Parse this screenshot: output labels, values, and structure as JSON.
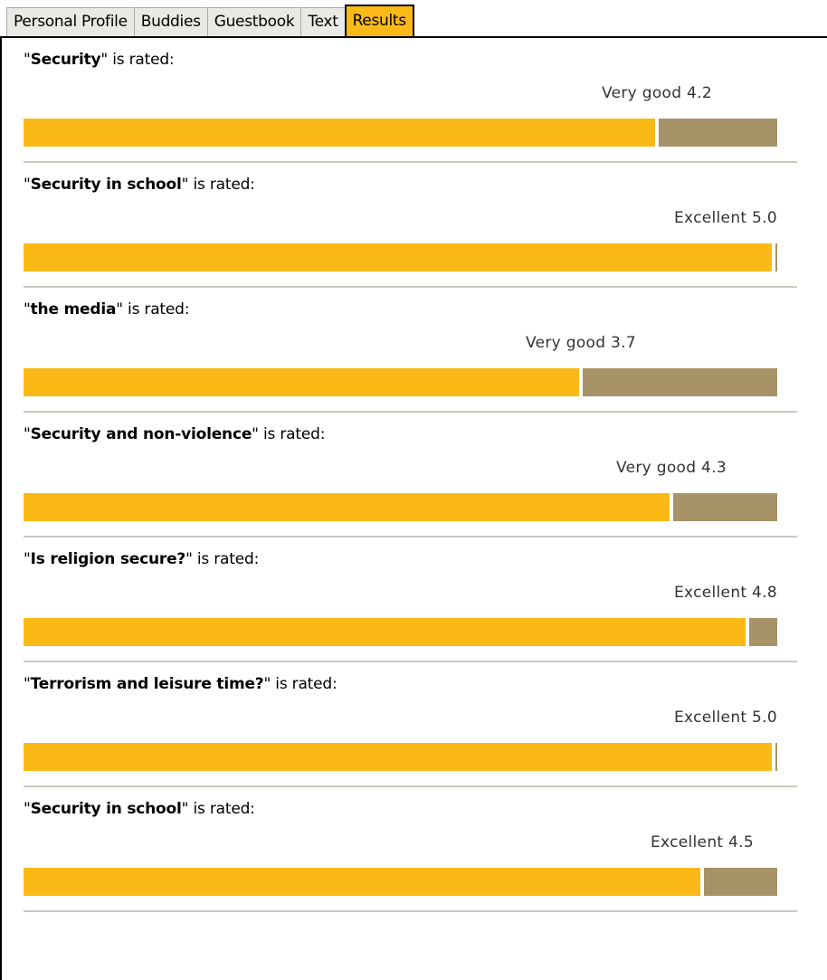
{
  "tabs": [
    {
      "label": "Personal Profile",
      "active": false
    },
    {
      "label": "Buddies",
      "active": false
    },
    {
      "label": "Guestbook",
      "active": false
    },
    {
      "label": "Text",
      "active": false
    },
    {
      "label": "Results",
      "active": true
    }
  ],
  "rated_suffix": "\" is rated:",
  "open_quote": "\"",
  "max_rating": 5.0,
  "colors": {
    "rating_fill": "#fbb917",
    "rating_remainder": "#a89267",
    "active_tab": "#fbb917"
  },
  "results": [
    {
      "title": "Security",
      "score_label": "Very good 4.2",
      "rating": 4.2
    },
    {
      "title": "Security in school",
      "score_label": "Excellent 5.0",
      "rating": 5.0
    },
    {
      "title": "the media",
      "score_label": "Very good 3.7",
      "rating": 3.7
    },
    {
      "title": "Security and non-violence",
      "score_label": "Very good 4.3",
      "rating": 4.3
    },
    {
      "title": "Is religion secure?",
      "score_label": "Excellent 4.8",
      "rating": 4.8
    },
    {
      "title": "Terrorism and leisure time?",
      "score_label": "Excellent 5.0",
      "rating": 5.0
    },
    {
      "title": "Security in school",
      "score_label": "Excellent 4.5",
      "rating": 4.5
    }
  ]
}
